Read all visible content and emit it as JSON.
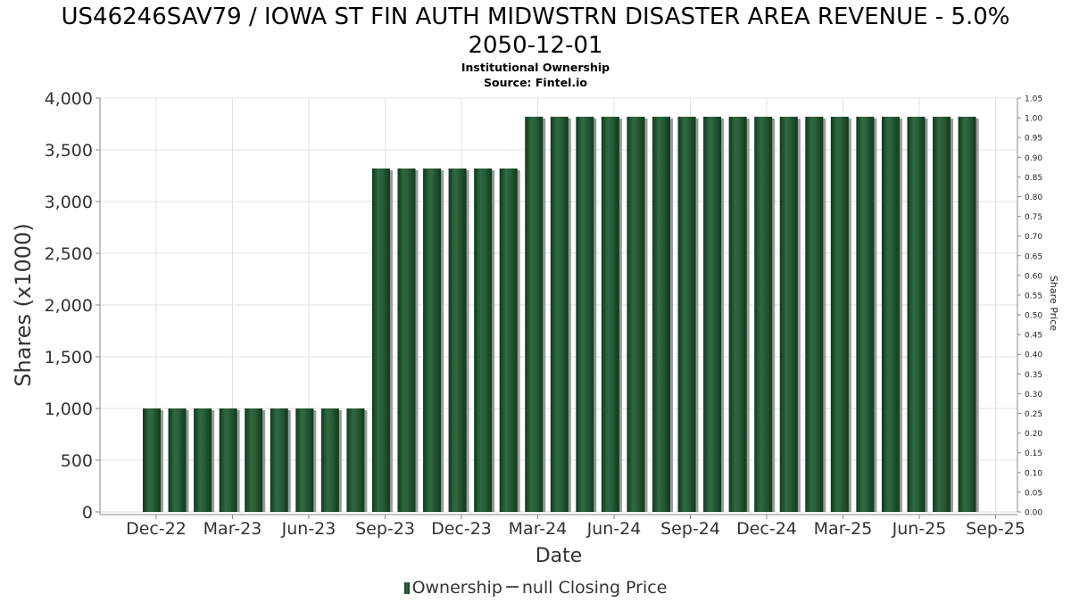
{
  "title_line1": "US46246SAV79 / IOWA ST FIN AUTH MIDWSTRN DISASTER AREA REVENUE - 5.0%",
  "title_line2": "2050-12-01",
  "subtitle": "Institutional Ownership",
  "source": "Source: Fintel.io",
  "legend": {
    "ownership": "Ownership",
    "price": "null Closing Price"
  },
  "colors": {
    "bar_dark": "#0f3a1e",
    "bar_mid": "#2f6a40",
    "bar_shadow": "#9a9a9a",
    "grid": "#e2e2e2",
    "axis": "#888888"
  },
  "chart_data": {
    "type": "bar",
    "xlabel": "Date",
    "ylabel": "Shares (x1000)",
    "y2label": "Share Price",
    "ylim": [
      0,
      4000
    ],
    "y2lim": [
      0,
      1.05
    ],
    "yticks": [
      0,
      500,
      1000,
      1500,
      2000,
      2500,
      3000,
      3500,
      4000
    ],
    "y2ticks": [
      "0.00",
      "0.05",
      "0.10",
      "0.15",
      "0.20",
      "0.25",
      "0.30",
      "0.35",
      "0.40",
      "0.45",
      "0.50",
      "0.55",
      "0.60",
      "0.65",
      "0.70",
      "0.75",
      "0.80",
      "0.85",
      "0.90",
      "0.95",
      "1.00",
      "1.05"
    ],
    "xticks": [
      "Dec-22",
      "Mar-23",
      "Jun-23",
      "Sep-23",
      "Dec-23",
      "Mar-24",
      "Jun-24",
      "Sep-24",
      "Dec-24",
      "Mar-25",
      "Jun-25",
      "Sep-25"
    ],
    "grid": true,
    "legend_position": "bottom",
    "series": [
      {
        "name": "Ownership",
        "values": [
          1000,
          1000,
          1000,
          1000,
          1000,
          1000,
          1000,
          1000,
          1000,
          3320,
          3320,
          3320,
          3320,
          3320,
          3320,
          3820,
          3820,
          3820,
          3820,
          3820,
          3820,
          3820,
          3820,
          3820,
          3820,
          3820,
          3820,
          3820,
          3820,
          3820,
          3820,
          3820,
          3820
        ]
      }
    ]
  }
}
